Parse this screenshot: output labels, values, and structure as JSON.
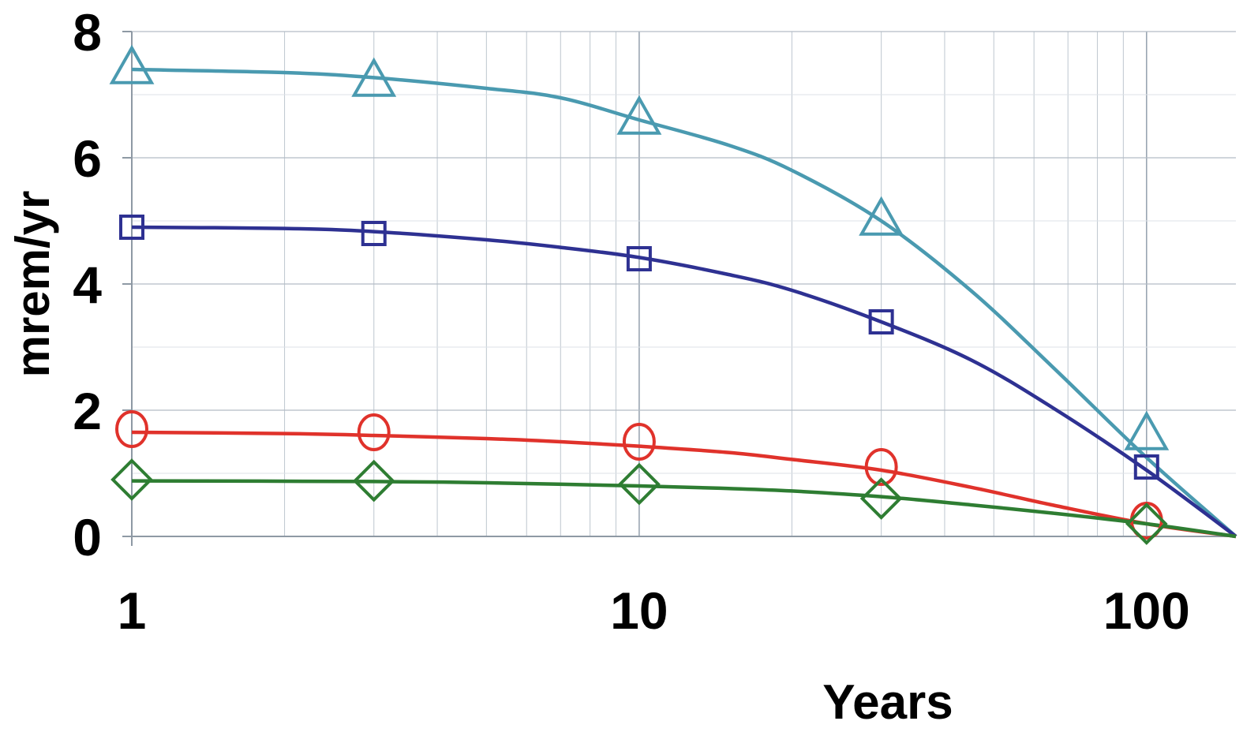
{
  "chart_data": {
    "type": "line",
    "title": "",
    "xlabel": "Years",
    "ylabel": "mrem/yr",
    "xscale": "log",
    "xlim": [
      1,
      150
    ],
    "ylim": [
      0,
      8
    ],
    "x_ticks": [
      "1",
      "10",
      "100"
    ],
    "y_ticks": [
      "0",
      "2",
      "4",
      "6",
      "8"
    ],
    "grid": true,
    "legend": "none",
    "series": [
      {
        "marker": "triangle",
        "color": "#4A9AB0",
        "points": [
          [
            1,
            7.4
          ],
          [
            3,
            7.2
          ],
          [
            10,
            6.6
          ],
          [
            30,
            5.0
          ],
          [
            100,
            1.6
          ],
          [
            150,
            0
          ]
        ],
        "curve": [
          [
            1,
            7.4
          ],
          [
            2,
            7.35
          ],
          [
            3,
            7.27
          ],
          [
            5,
            7.1
          ],
          [
            7,
            6.95
          ],
          [
            10,
            6.6
          ],
          [
            15,
            6.2
          ],
          [
            20,
            5.8
          ],
          [
            30,
            5.0
          ],
          [
            45,
            3.9
          ],
          [
            65,
            2.7
          ],
          [
            100,
            1.25
          ],
          [
            150,
            0
          ]
        ]
      },
      {
        "marker": "square",
        "color": "#2E3192",
        "points": [
          [
            1,
            4.9
          ],
          [
            3,
            4.8
          ],
          [
            10,
            4.4
          ],
          [
            30,
            3.4
          ],
          [
            100,
            1.1
          ],
          [
            150,
            0
          ]
        ],
        "curve": [
          [
            1,
            4.9
          ],
          [
            2,
            4.88
          ],
          [
            3,
            4.83
          ],
          [
            5,
            4.7
          ],
          [
            7,
            4.58
          ],
          [
            10,
            4.42
          ],
          [
            15,
            4.15
          ],
          [
            20,
            3.9
          ],
          [
            30,
            3.4
          ],
          [
            45,
            2.8
          ],
          [
            65,
            2.05
          ],
          [
            100,
            1.05
          ],
          [
            150,
            0
          ]
        ]
      },
      {
        "marker": "circle",
        "color": "#E0322B",
        "points": [
          [
            1,
            1.7
          ],
          [
            3,
            1.65
          ],
          [
            10,
            1.5
          ],
          [
            30,
            1.1
          ],
          [
            100,
            0.25
          ],
          [
            150,
            0
          ]
        ],
        "curve": [
          [
            1,
            1.65
          ],
          [
            2,
            1.63
          ],
          [
            3,
            1.6
          ],
          [
            5,
            1.55
          ],
          [
            7,
            1.5
          ],
          [
            10,
            1.43
          ],
          [
            15,
            1.33
          ],
          [
            20,
            1.22
          ],
          [
            30,
            1.05
          ],
          [
            45,
            0.78
          ],
          [
            65,
            0.5
          ],
          [
            100,
            0.2
          ],
          [
            150,
            0
          ]
        ]
      },
      {
        "marker": "diamond",
        "color": "#2E7D32",
        "points": [
          [
            1,
            0.9
          ],
          [
            3,
            0.88
          ],
          [
            10,
            0.83
          ],
          [
            30,
            0.6
          ],
          [
            100,
            0.2
          ],
          [
            150,
            0
          ]
        ],
        "curve": [
          [
            1,
            0.88
          ],
          [
            3,
            0.87
          ],
          [
            5,
            0.85
          ],
          [
            10,
            0.8
          ],
          [
            15,
            0.76
          ],
          [
            20,
            0.72
          ],
          [
            30,
            0.63
          ],
          [
            45,
            0.5
          ],
          [
            65,
            0.37
          ],
          [
            100,
            0.2
          ],
          [
            150,
            0
          ]
        ]
      }
    ]
  }
}
